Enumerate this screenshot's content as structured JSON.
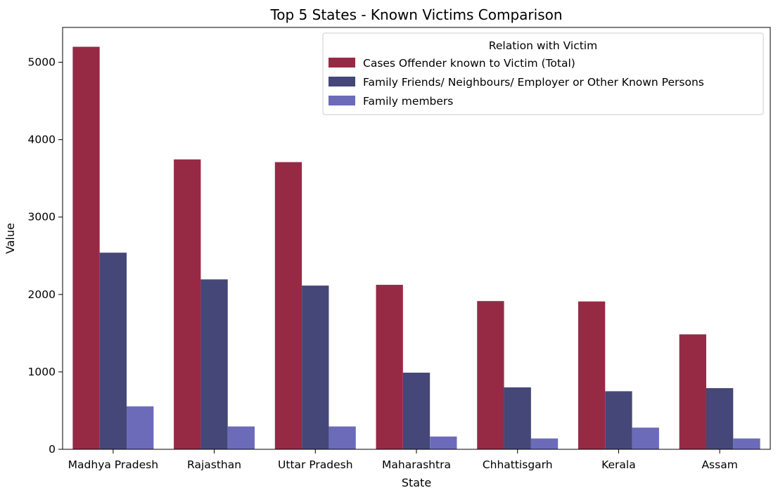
{
  "chart_data": {
    "type": "bar",
    "title": "Top 5 States - Known Victims Comparison",
    "xlabel": "State",
    "ylabel": "Value",
    "ylim": [
      0,
      5450
    ],
    "yticks": [
      0,
      1000,
      2000,
      3000,
      4000,
      5000
    ],
    "categories": [
      "Madhya Pradesh",
      "Rajasthan",
      "Uttar Pradesh",
      "Maharashtra",
      "Chhattisgarh",
      "Kerala",
      "Assam"
    ],
    "legend": {
      "title": "Relation with Victim",
      "placement": "top-right"
    },
    "series": [
      {
        "name": "Cases Offender known to Victim (Total)",
        "color": "#962a45",
        "values": [
          5200,
          3745,
          3710,
          2125,
          1915,
          1910,
          1485
        ]
      },
      {
        "name": "Family Friends/ Neighbours/ Employer or Other Known Persons",
        "color": "#444777",
        "values": [
          2540,
          2195,
          2115,
          990,
          800,
          750,
          790
        ]
      },
      {
        "name": "Family members",
        "color": "#6c6bb9",
        "values": [
          555,
          295,
          295,
          165,
          140,
          280,
          140
        ]
      }
    ],
    "grid": false
  }
}
